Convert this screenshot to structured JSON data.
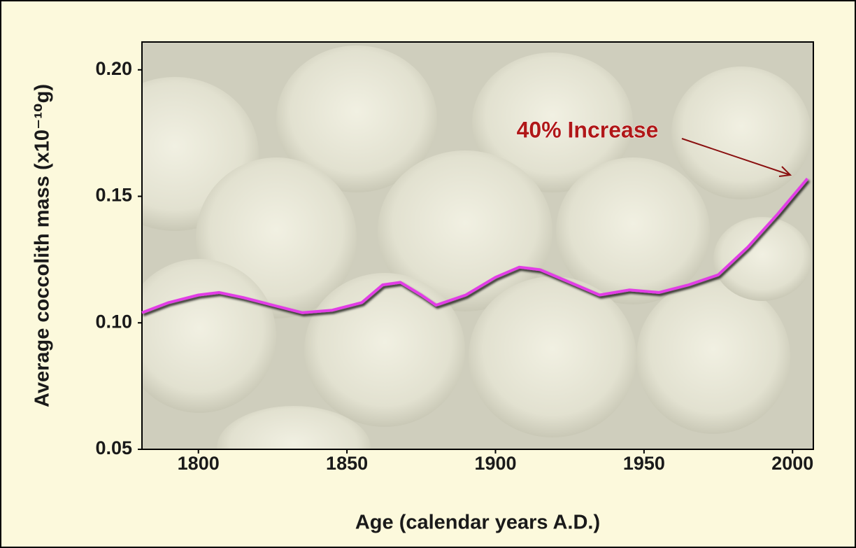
{
  "chart_data": {
    "type": "line",
    "x_label": "Age (calendar years A.D.)",
    "y_label": "Average coccolith mass (x10⁻¹⁰g)",
    "annotation": "40% Increase",
    "x": [
      1781,
      1790,
      1800,
      1807,
      1815,
      1825,
      1835,
      1845,
      1855,
      1862,
      1868,
      1875,
      1880,
      1890,
      1900,
      1908,
      1915,
      1925,
      1935,
      1945,
      1955,
      1965,
      1975,
      1985,
      1995,
      2005
    ],
    "series": [
      {
        "color": "#e23ee6",
        "values": [
          0.104,
          0.108,
          0.111,
          0.112,
          0.11,
          0.107,
          0.104,
          0.105,
          0.108,
          0.115,
          0.116,
          0.111,
          0.107,
          0.111,
          0.118,
          0.122,
          0.121,
          0.116,
          0.111,
          0.113,
          0.112,
          0.115,
          0.119,
          0.13,
          0.143,
          0.157
        ]
      }
    ],
    "xlim": [
      1781,
      2007
    ],
    "ylim": [
      0.05,
      0.211
    ],
    "xticks": [
      1800,
      1850,
      1900,
      1950,
      2000
    ],
    "yticks": [
      0.05,
      {
        "value": 0.1,
        "label": "0.10"
      },
      0.15,
      {
        "value": 0.2,
        "label": "0.20"
      }
    ]
  }
}
